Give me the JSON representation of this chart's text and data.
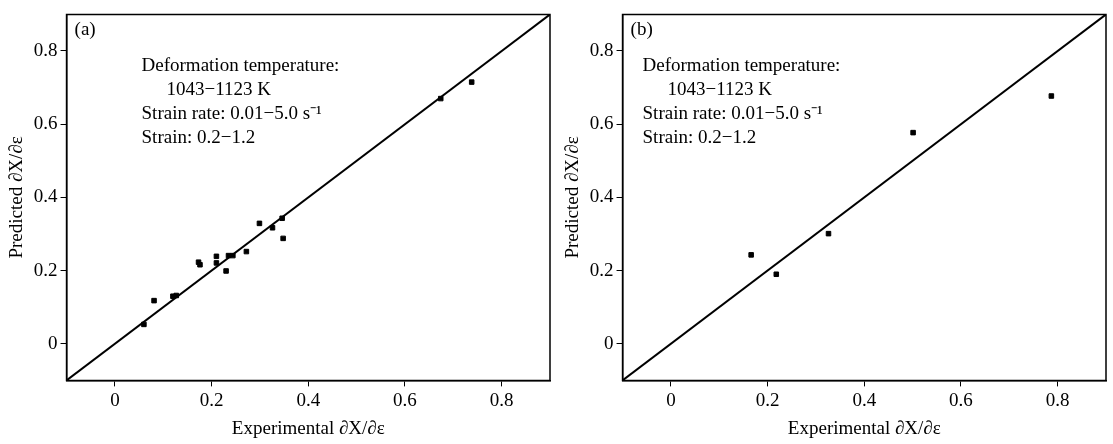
{
  "chart_data": [
    {
      "type": "scatter",
      "xlabel": "Experimental ∂X/∂ε",
      "ylabel": "Predicted ∂X/∂ε",
      "annotations": [
        "(a)",
        "Deformation temperature:",
        "1043−1123 K",
        "Strain rate: 0.01−5.0 s⁻¹",
        "Strain: 0.2−1.2"
      ],
      "xlim": [
        -0.1,
        0.9
      ],
      "ylim": [
        -0.1,
        0.9
      ],
      "xticks": [
        0,
        0.2,
        0.4,
        0.6,
        0.8
      ],
      "yticks": [
        0,
        0.2,
        0.4,
        0.6,
        0.8
      ],
      "grid": false,
      "legend": false,
      "series": [
        {
          "color": "#000000",
          "marker": "square",
          "x": [
            0.06,
            0.081,
            0.12,
            0.127,
            0.173,
            0.176,
            0.21,
            0.21,
            0.23,
            0.235,
            0.244,
            0.272,
            0.299,
            0.326,
            0.346,
            0.348,
            0.674,
            0.738
          ],
          "values": [
            0.053,
            0.118,
            0.13,
            0.132,
            0.223,
            0.216,
            0.239,
            0.221,
            0.199,
            0.241,
            0.241,
            0.252,
            0.329,
            0.317,
            0.343,
            0.288,
            0.67,
            0.715
          ]
        },
        {
          "type": "line",
          "color": "#000000",
          "marker": "none",
          "x": [
            -0.1,
            0.9
          ],
          "values": [
            -0.1,
            0.9
          ]
        }
      ]
    },
    {
      "type": "scatter",
      "xlabel": "Experimental ∂X/∂ε",
      "ylabel": "Predicted ∂X/∂ε",
      "annotations": [
        "(b)",
        "Deformation temperature:",
        "1043−1123 K",
        "Strain rate: 0.01−5.0 s⁻¹",
        "Strain: 0.2−1.2"
      ],
      "xlim": [
        -0.1,
        0.9
      ],
      "ylim": [
        -0.1,
        0.9
      ],
      "xticks": [
        0,
        0.2,
        0.4,
        0.6,
        0.8
      ],
      "yticks": [
        0,
        0.2,
        0.4,
        0.6,
        0.8
      ],
      "grid": false,
      "legend": false,
      "series": [
        {
          "color": "#000000",
          "marker": "square",
          "x": [
            0.166,
            0.218,
            0.326,
            0.501,
            0.787
          ],
          "values": [
            0.243,
            0.19,
            0.301,
            0.577,
            0.677
          ]
        },
        {
          "type": "line",
          "color": "#000000",
          "marker": "none",
          "x": [
            -0.1,
            0.9
          ],
          "values": [
            -0.1,
            0.9
          ]
        }
      ]
    }
  ]
}
